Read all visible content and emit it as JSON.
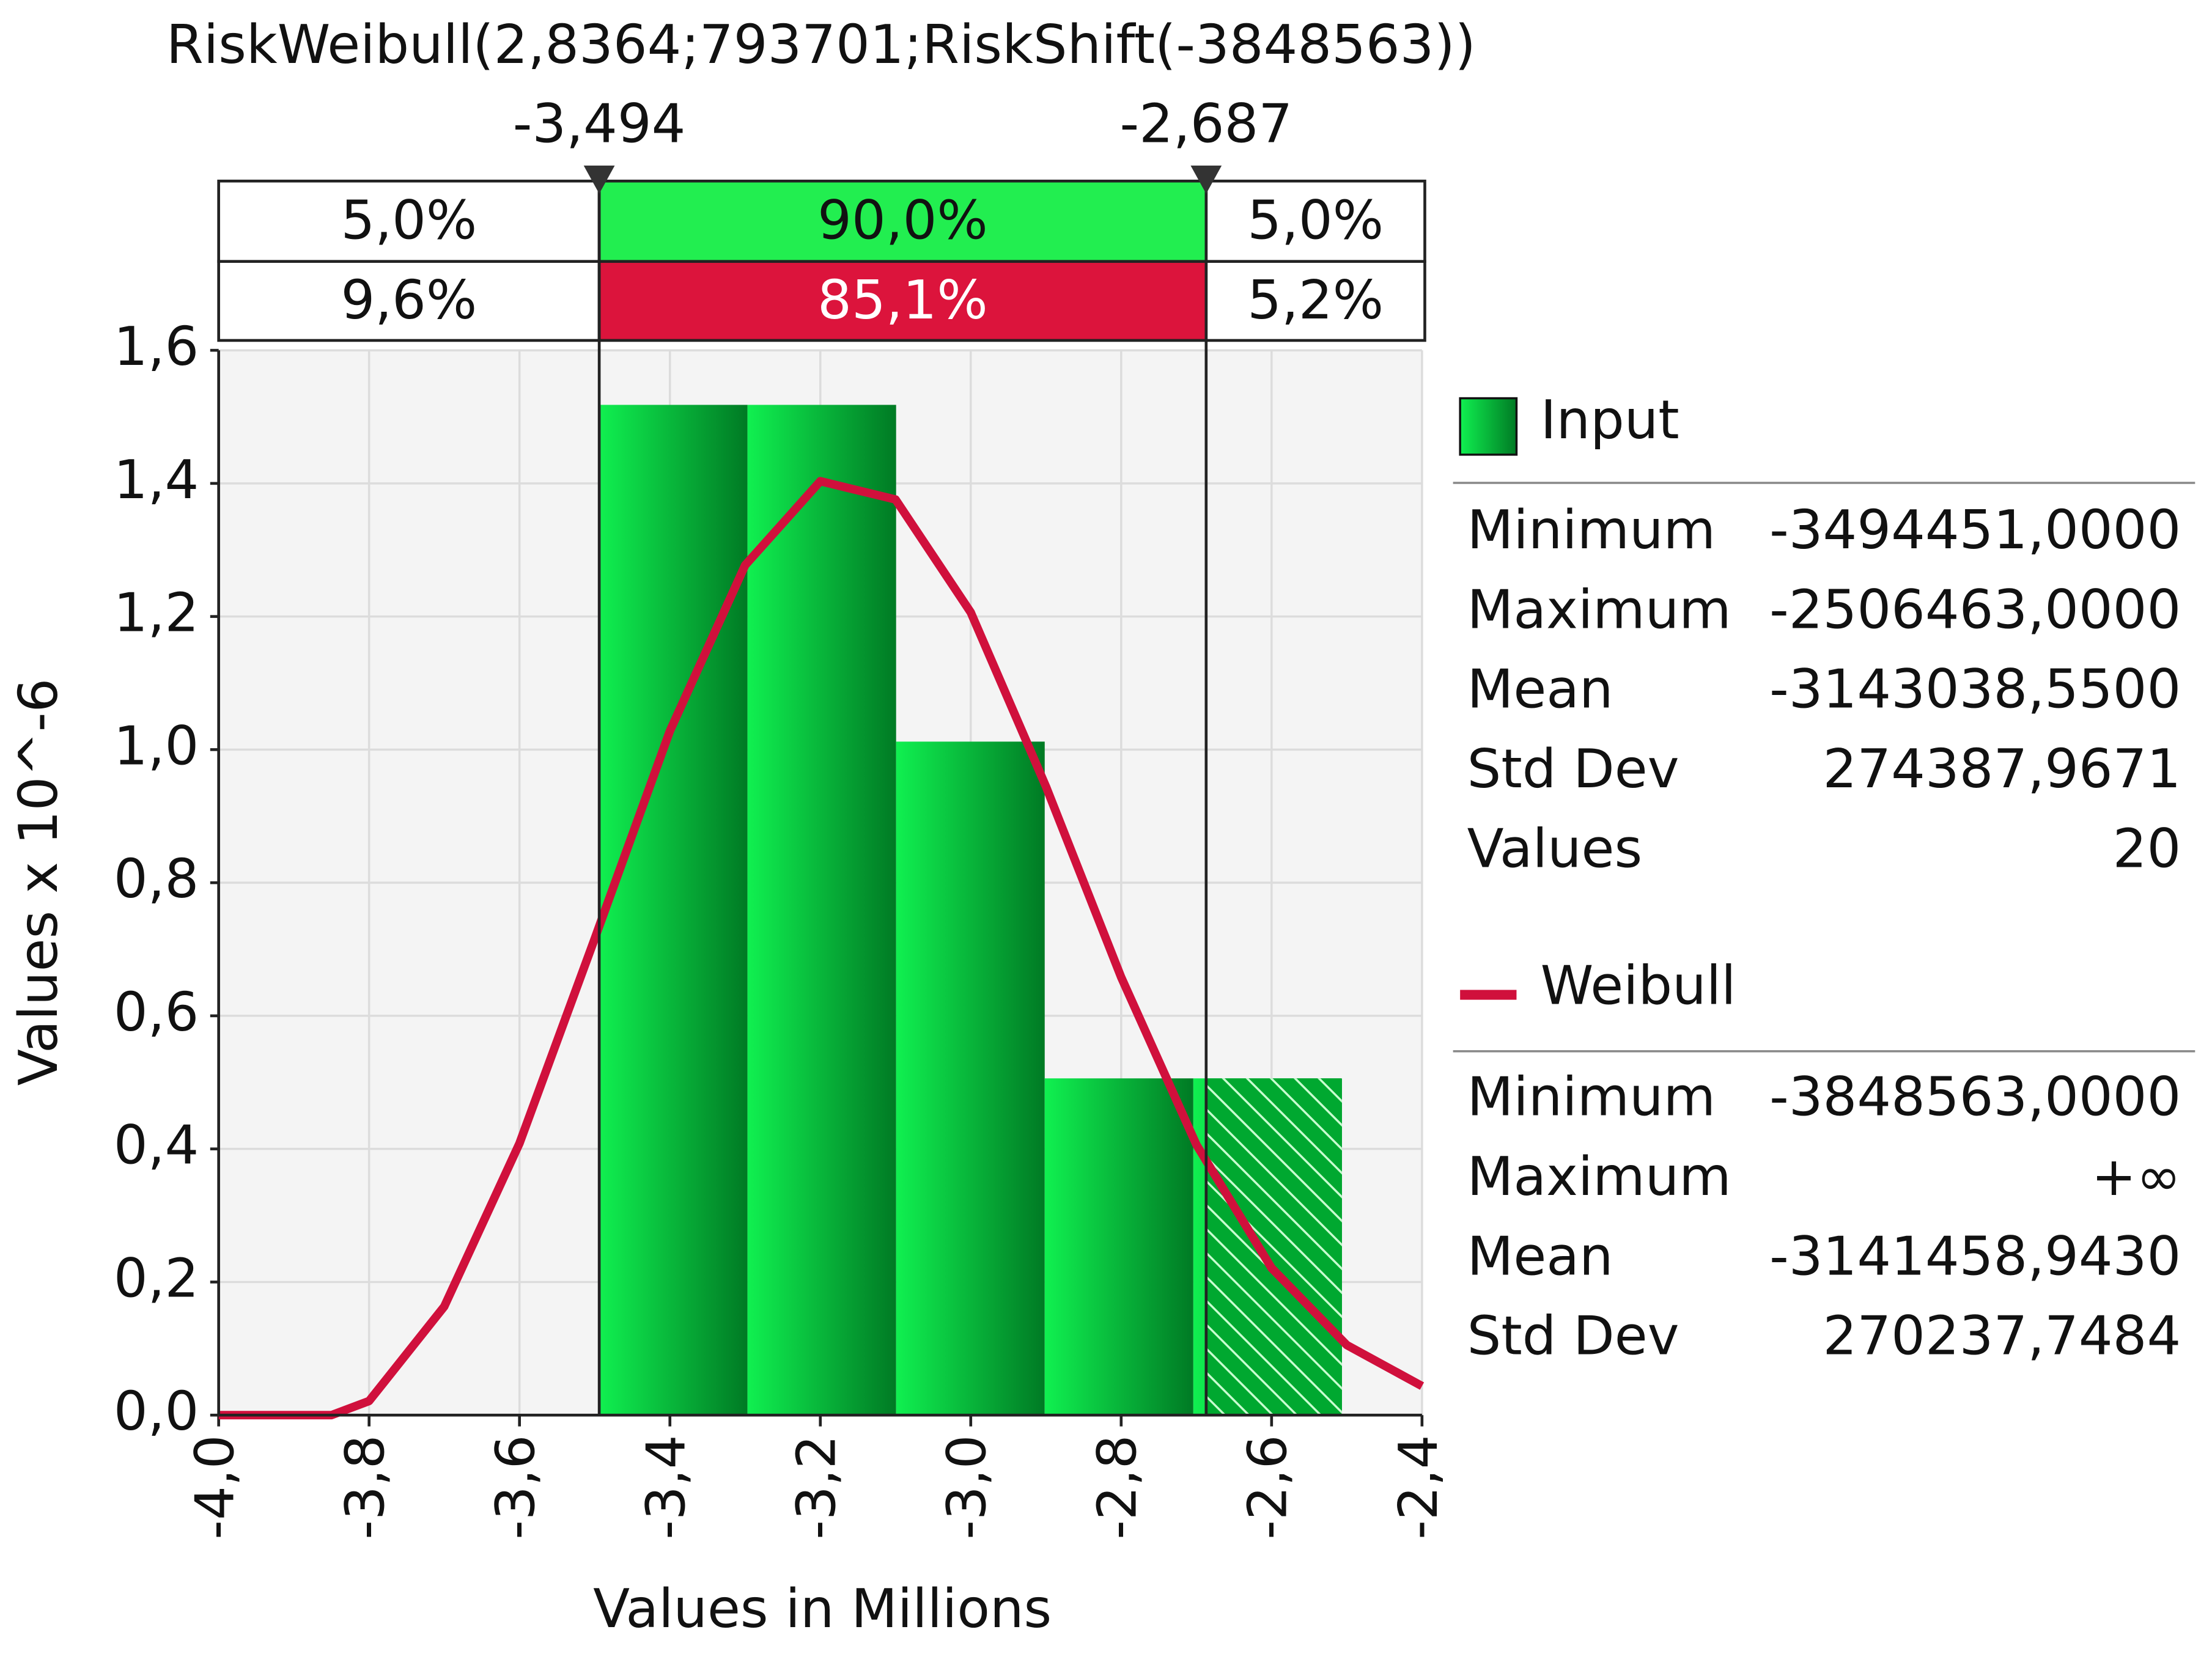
{
  "chart_data": {
    "type": "histogram",
    "title": "RiskWeibull(2,8364;793701;RiskShift(-3848563))",
    "xlabel": "Values in Millions",
    "ylabel": "Values x 10^-6",
    "bins": [
      -3.494451,
      -3.296853,
      -3.099254,
      -2.901656,
      -2.704058,
      -2.506463
    ],
    "series": [
      {
        "name": "Input",
        "color": "#00c83c",
        "values": [
          1.518,
          1.518,
          1.012,
          0.506,
          0.506
        ]
      }
    ],
    "curve": {
      "name": "Weibull",
      "color": "#d0103c",
      "x": [
        -4.0,
        -3.9,
        -3.85,
        -3.8,
        -3.7,
        -3.6,
        -3.5,
        -3.4,
        -3.3,
        -3.2,
        -3.1,
        -3.0,
        -2.9,
        -2.8,
        -2.7,
        -2.6,
        -2.5,
        -2.4
      ],
      "y": [
        0,
        0,
        0,
        0.0212,
        0.1633,
        0.4084,
        0.7159,
        1.028,
        1.277,
        1.4033,
        1.3758,
        1.2062,
        0.9445,
        0.658,
        0.4064,
        0.221,
        0.1053,
        0.0436
      ]
    },
    "xlim": [
      -4.0,
      -2.4
    ],
    "ylim": [
      0,
      1.6
    ],
    "xticks": [
      {
        "value": -4.0,
        "label": "-4,0"
      },
      {
        "value": -3.8,
        "label": "-3,8"
      },
      {
        "value": -3.6,
        "label": "-3,6"
      },
      {
        "value": -3.4,
        "label": "-3,4"
      },
      {
        "value": -3.2,
        "label": "-3,2"
      },
      {
        "value": -3.0,
        "label": "-3,0"
      },
      {
        "value": -2.8,
        "label": "-2,8"
      },
      {
        "value": -2.6,
        "label": "-2,6"
      },
      {
        "value": -2.4,
        "label": "-2,4"
      }
    ],
    "yticks": [
      {
        "value": 0,
        "label": "0,0"
      },
      {
        "value": 0.2,
        "label": "0,2"
      },
      {
        "value": 0.4,
        "label": "0,4"
      },
      {
        "value": 0.6,
        "label": "0,6"
      },
      {
        "value": 0.8,
        "label": "0,8"
      },
      {
        "value": 1.0,
        "label": "1,0"
      },
      {
        "value": 1.2,
        "label": "1,2"
      },
      {
        "value": 1.4,
        "label": "1,4"
      },
      {
        "value": 1.6,
        "label": "1,6"
      }
    ],
    "grid": true,
    "delimiters": [
      {
        "value": -3.494,
        "label": "-3,494"
      },
      {
        "value": -2.687,
        "label": "-2,687"
      }
    ],
    "bands": [
      [
        "5,0%",
        "90,0%",
        "5,0%"
      ],
      [
        "9,6%",
        "85,1%",
        "5,2%"
      ]
    ],
    "stats": [
      [
        [
          "Minimum",
          "-3494451,0000"
        ],
        [
          "Maximum",
          "-2506463,0000"
        ],
        [
          "Mean",
          "-3143038,5500"
        ],
        [
          "Std Dev",
          "274387,9671"
        ],
        [
          "Values",
          "20"
        ]
      ],
      [
        [
          "Minimum",
          "-3848563,0000"
        ],
        [
          "Maximum",
          "+∞"
        ],
        [
          "Mean",
          "-3141458,9430"
        ],
        [
          "Std Dev",
          "270237,7484"
        ]
      ]
    ]
  }
}
